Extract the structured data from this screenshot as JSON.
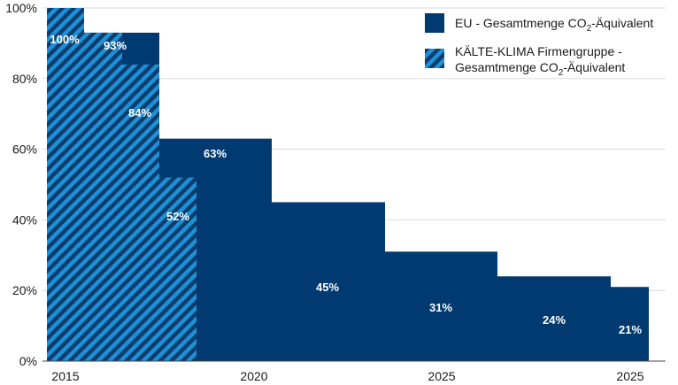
{
  "chart_data": {
    "type": "bar",
    "subtype": "stepped-area",
    "y_ticks": [
      "0%",
      "20%",
      "40%",
      "60%",
      "80%",
      "100%"
    ],
    "ylim": [
      0,
      100
    ],
    "x_tick_labels": [
      "2015",
      "2020",
      "2025",
      "2025"
    ],
    "grid": true,
    "legend_position": "top-right",
    "colors": {
      "eu": "#003a70",
      "firm": "#1e90d6",
      "hatch": "#0b3d6e"
    },
    "series": [
      {
        "name": "EU - Gesamtmenge CO₂-Äquivalent",
        "style": "solid",
        "steps": [
          {
            "label": "93%",
            "value": 93
          },
          {
            "label": "63%",
            "value": 63
          },
          {
            "label": "45%",
            "value": 45
          },
          {
            "label": "31%",
            "value": 31
          },
          {
            "label": "24%",
            "value": 24
          },
          {
            "label": "21%",
            "value": 21
          }
        ]
      },
      {
        "name": "KÄLTE-KLIMA Firmengruppe - Gesamtmenge CO₂-Äquivalent",
        "style": "hatched",
        "steps": [
          {
            "label": "100%",
            "value": 100
          },
          {
            "label": "93%",
            "value": 93
          },
          {
            "label": "84%",
            "value": 84
          },
          {
            "label": "52%",
            "value": 52
          }
        ]
      }
    ],
    "legend": {
      "eu": {
        "prefix": "EU - Gesamtmenge CO",
        "sub": "2",
        "suffix": "-Äquivalent"
      },
      "firm_line1": "KÄLTE-KLIMA Firmengruppe -",
      "firm_line2": {
        "prefix": "Gesamtmenge CO",
        "sub": "2",
        "suffix": "-Äquivalent"
      }
    }
  }
}
